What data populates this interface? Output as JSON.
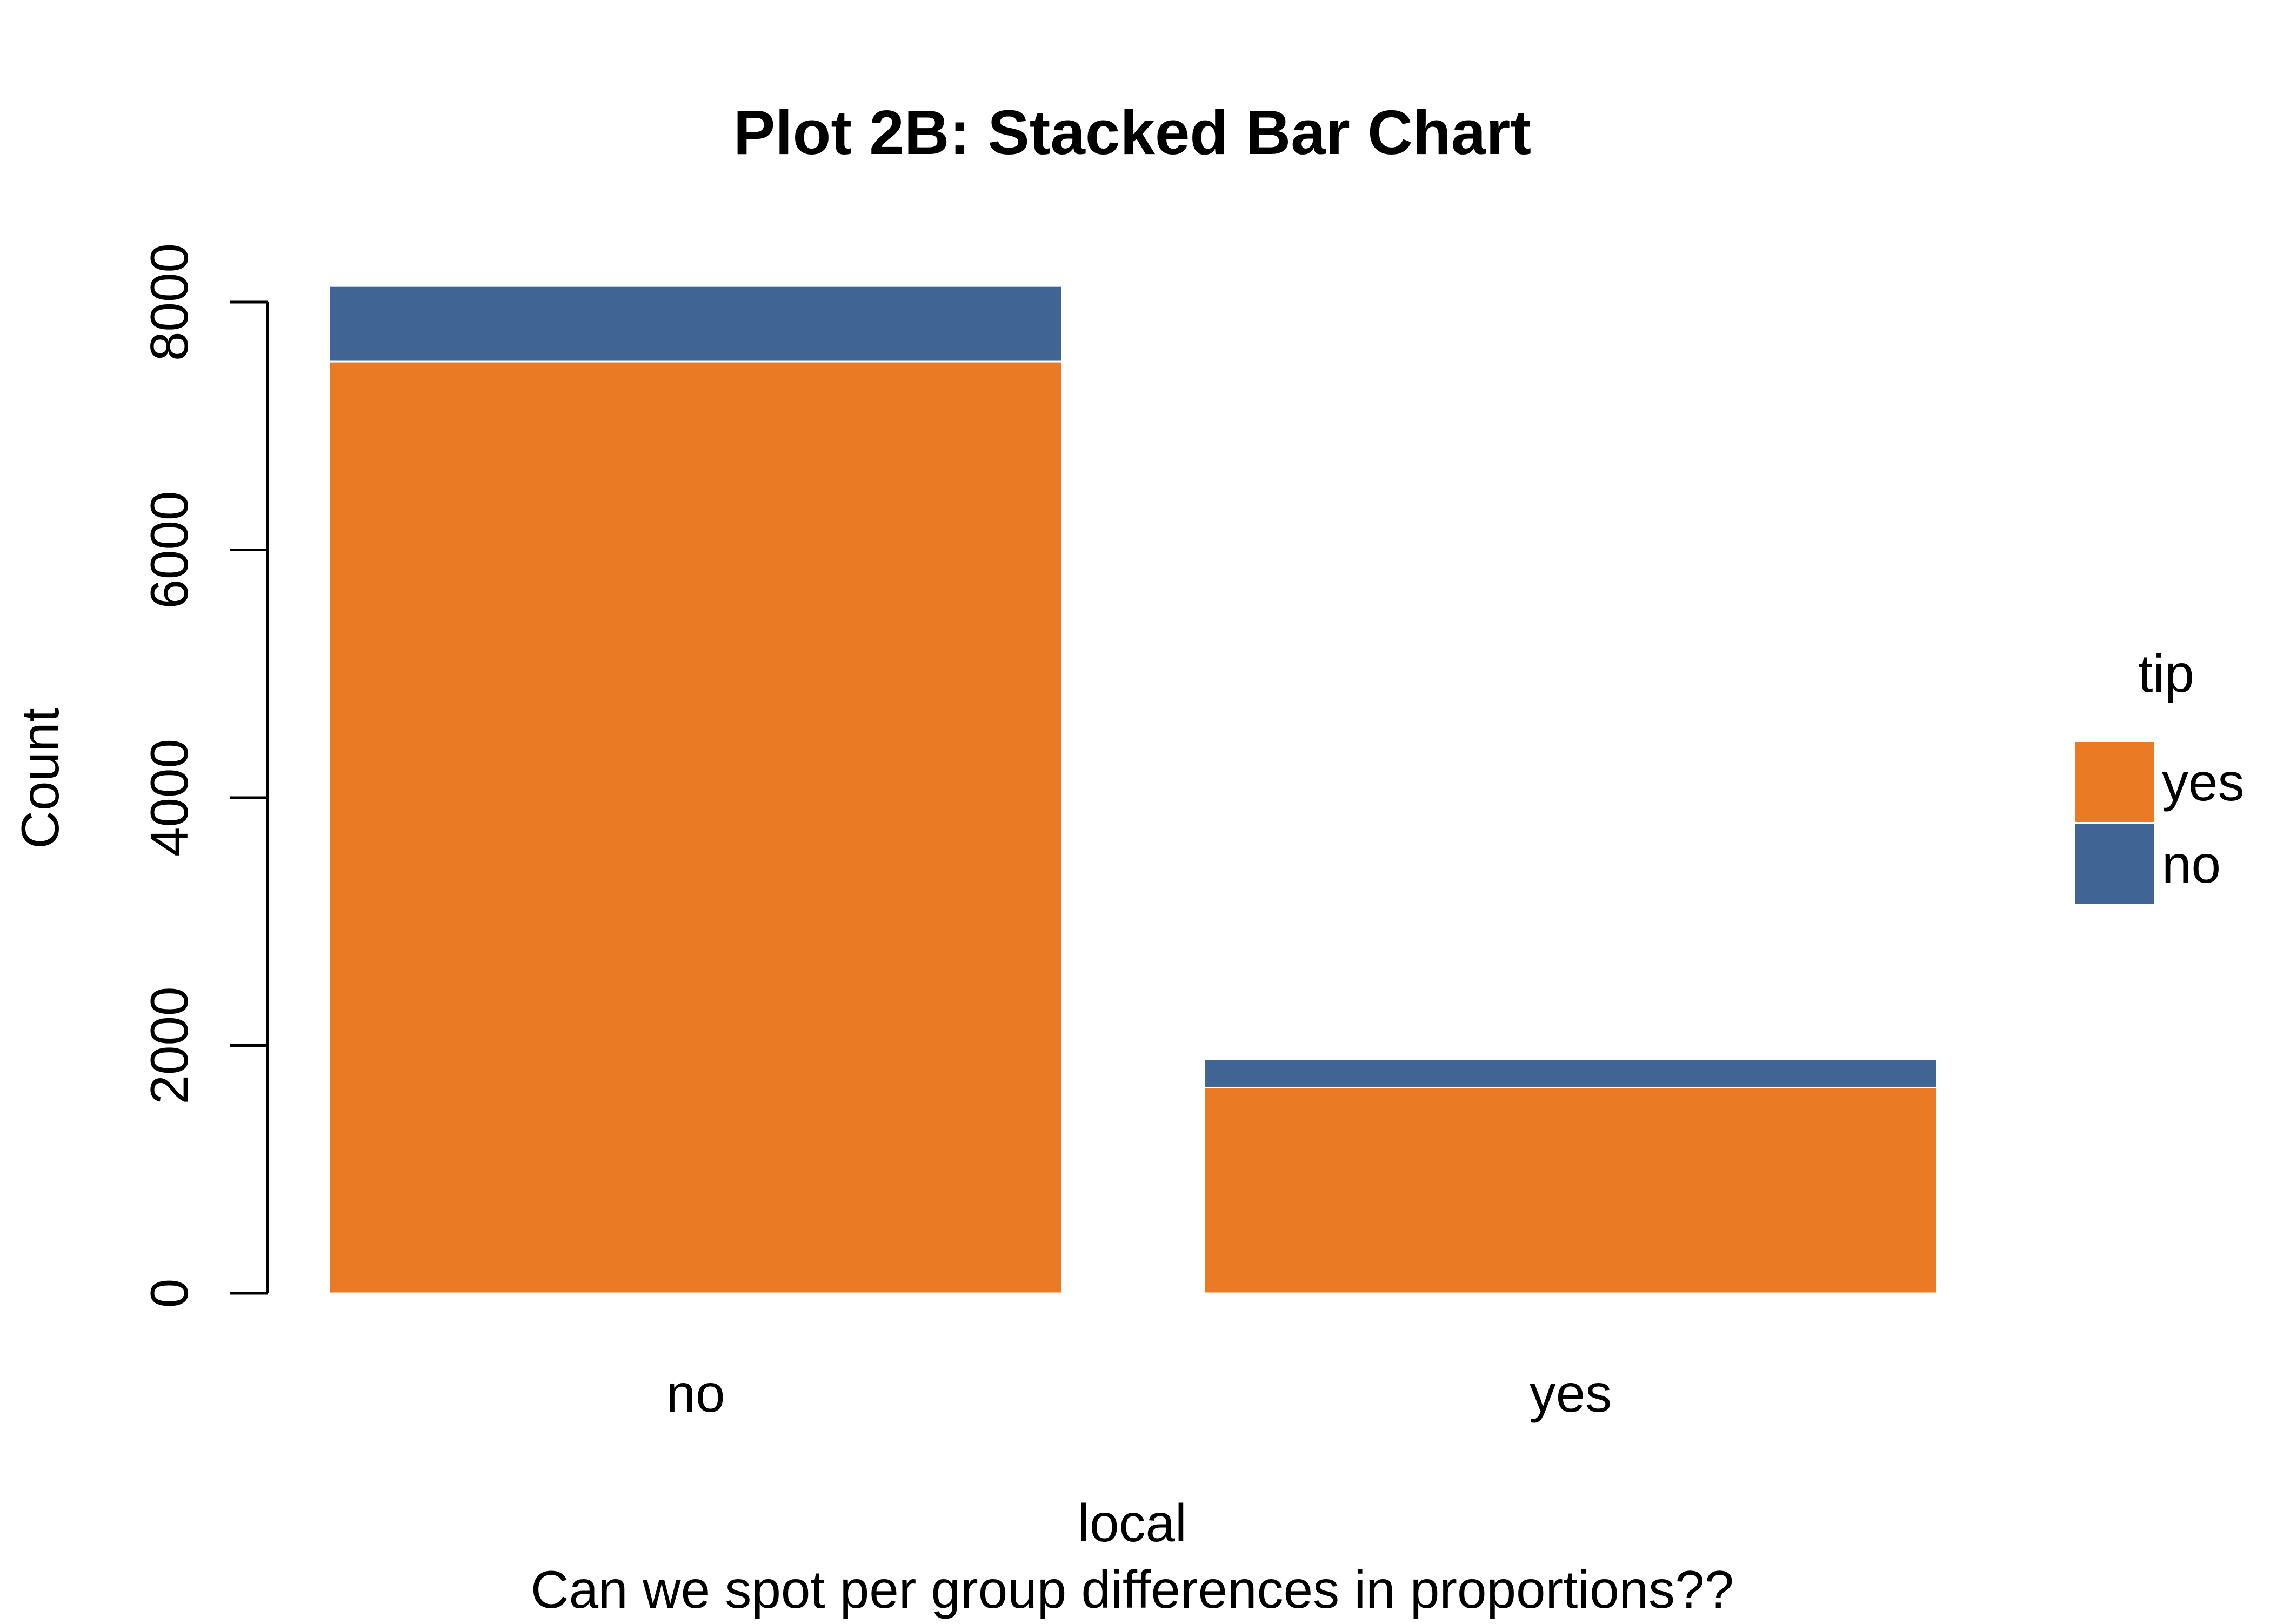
{
  "chart_data": {
    "type": "bar",
    "stacked": true,
    "title": "Plot 2B: Stacked Bar Chart",
    "xlabel": "local",
    "ylabel": "Count",
    "caption": "Can we spot per group differences in proportions??",
    "categories": [
      "no",
      "yes"
    ],
    "series": [
      {
        "name": "yes",
        "color": "#EB7A24",
        "values": [
          7520,
          1660
        ]
      },
      {
        "name": "no",
        "color": "#406494",
        "values": [
          610,
          230
        ]
      }
    ],
    "ylim": [
      0,
      8130
    ],
    "yticks": [
      0,
      2000,
      4000,
      6000,
      8000
    ],
    "ytick_labels": [
      "0",
      "2000",
      "4000",
      "6000",
      "8000"
    ],
    "legend": {
      "title": "tip",
      "position": "right",
      "entries": [
        "yes",
        "no"
      ]
    },
    "grid": false
  }
}
